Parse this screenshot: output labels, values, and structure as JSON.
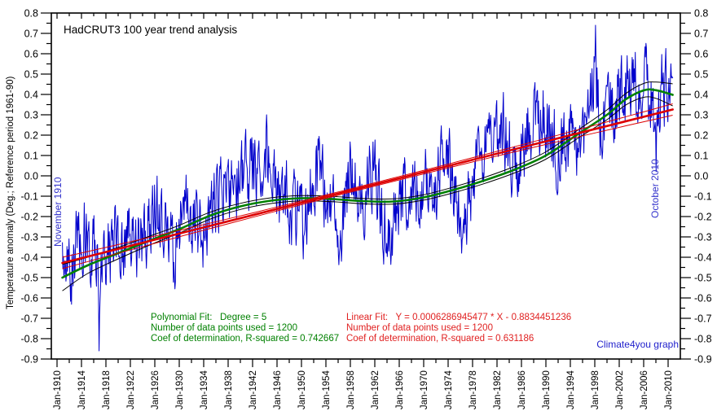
{
  "annotations": {
    "series_start": "November 1910",
    "series_end": "October 2010",
    "credit": "Climate4you graph"
  },
  "stats": {
    "poly": {
      "line1": "Polynomial Fit:   Degree = 5",
      "line2": "Number of data points used = 1200",
      "line3": "Coef of determination, R-squared = 0.742667"
    },
    "linear": {
      "line1": "Linear Fit:   Y = 0.0006286945477 * X - 0.8834451236",
      "line2": "Number of data points used = 1200",
      "line3": "Coef of determination, R-squared = 0.631186"
    }
  },
  "colors": {
    "monthly_data": "#0000CC",
    "polynomial_fit": "#008000",
    "linear_fit": "#DD0000",
    "confidence_band": "#000000",
    "annotation_text": "#3333CC",
    "credit_text": "#2222CC"
  },
  "chart_data": {
    "type": "line",
    "title": "HadCRUT3 100 year trend analysis",
    "ylabel": "Temperature anomaly (Deg.; Reference period 1961-90)",
    "ylim": [
      -0.9,
      0.8
    ],
    "y_major_step": 0.1,
    "y_minor_step": 0.05,
    "x_domain_years": [
      1909,
      2012
    ],
    "x_major_step_years": 4,
    "x_minor_step_years": 2,
    "grid": false,
    "legend": "none",
    "x_tick_labels": [
      "Jan-1910",
      "Jan-1914",
      "Jan-1918",
      "Jan-1922",
      "Jan-1926",
      "Jan-1930",
      "Jan-1934",
      "Jan-1938",
      "Jan-1942",
      "Jan-1946",
      "Jan-1950",
      "Jan-1954",
      "Jan-1958",
      "Jan-1962",
      "Jan-1966",
      "Jan-1970",
      "Jan-1974",
      "Jan-1978",
      "Jan-1982",
      "Jan-1986",
      "Jan-1990",
      "Jan-1994",
      "Jan-1998",
      "Jan-2002",
      "Jan-2006",
      "Jan-2010"
    ],
    "series": [
      {
        "name": "HadCRUT3 monthly temperature anomaly",
        "kind": "monthly_noisy",
        "color": "#0000CC",
        "start": "November 1910",
        "end": "October 2010",
        "n_points": 1200,
        "annual_means": [
          [
            1910.9,
            -0.46
          ],
          [
            1912,
            -0.48
          ],
          [
            1914,
            -0.28
          ],
          [
            1915,
            -0.22
          ],
          [
            1917,
            -0.52
          ],
          [
            1918,
            -0.42
          ],
          [
            1920,
            -0.3
          ],
          [
            1922,
            -0.34
          ],
          [
            1924,
            -0.33
          ],
          [
            1926,
            -0.18
          ],
          [
            1928,
            -0.24
          ],
          [
            1929,
            -0.38
          ],
          [
            1931,
            -0.16
          ],
          [
            1933,
            -0.3
          ],
          [
            1935,
            -0.22
          ],
          [
            1937,
            -0.08
          ],
          [
            1939,
            -0.04
          ],
          [
            1941,
            0.02
          ],
          [
            1943,
            -0.02
          ],
          [
            1944,
            0.12
          ],
          [
            1946,
            -0.08
          ],
          [
            1948,
            -0.12
          ],
          [
            1950,
            -0.24
          ],
          [
            1952,
            -0.02
          ],
          [
            1953,
            0.06
          ],
          [
            1955,
            -0.2
          ],
          [
            1956,
            -0.28
          ],
          [
            1958,
            0.02
          ],
          [
            1960,
            -0.06
          ],
          [
            1962,
            0.0
          ],
          [
            1964,
            -0.3
          ],
          [
            1966,
            -0.12
          ],
          [
            1968,
            -0.1
          ],
          [
            1970,
            0.0
          ],
          [
            1972,
            -0.02
          ],
          [
            1973,
            0.12
          ],
          [
            1975,
            -0.06
          ],
          [
            1976,
            -0.22
          ],
          [
            1978,
            -0.02
          ],
          [
            1980,
            0.12
          ],
          [
            1981,
            0.2
          ],
          [
            1983,
            0.22
          ],
          [
            1985,
            0.02
          ],
          [
            1987,
            0.24
          ],
          [
            1988,
            0.26
          ],
          [
            1990,
            0.3
          ],
          [
            1992,
            0.12
          ],
          [
            1994,
            0.2
          ],
          [
            1996,
            0.2
          ],
          [
            1997,
            0.36
          ],
          [
            1998,
            0.52
          ],
          [
            1999,
            0.26
          ],
          [
            2001,
            0.36
          ],
          [
            2002,
            0.44
          ],
          [
            2004,
            0.42
          ],
          [
            2005,
            0.46
          ],
          [
            2007,
            0.42
          ],
          [
            2008,
            0.26
          ],
          [
            2009,
            0.42
          ],
          [
            2010.8,
            0.5
          ]
        ],
        "noise": {
          "seed": 19102010,
          "phi": 0.45,
          "amp": 0.16
        },
        "forced_points": [
          [
            1916.9,
            -0.86
          ],
          [
            1944.3,
            0.3
          ],
          [
            1956.5,
            -0.42
          ],
          [
            1963.9,
            -0.38
          ],
          [
            1976.2,
            -0.38
          ],
          [
            1998.12,
            0.74
          ],
          [
            2008.04,
            0.02
          ],
          [
            2010.75,
            0.48
          ]
        ]
      },
      {
        "name": "Polynomial fit (degree 5) with confidence band",
        "kind": "smooth_with_band",
        "color": "#008000",
        "band_color": "#000000",
        "degree": 5,
        "r_squared": 0.742667,
        "samples": [
          [
            1910.875,
            -0.5,
            0.065
          ],
          [
            1915,
            -0.44,
            0.04
          ],
          [
            1920,
            -0.38,
            0.028
          ],
          [
            1925,
            -0.32,
            0.022
          ],
          [
            1930,
            -0.262,
            0.019
          ],
          [
            1935,
            -0.196,
            0.017
          ],
          [
            1940,
            -0.15,
            0.015
          ],
          [
            1945,
            -0.122,
            0.014
          ],
          [
            1950,
            -0.11,
            0.013
          ],
          [
            1955,
            -0.114,
            0.013
          ],
          [
            1960,
            -0.124,
            0.013
          ],
          [
            1965,
            -0.126,
            0.013
          ],
          [
            1970,
            -0.106,
            0.013
          ],
          [
            1975,
            -0.068,
            0.014
          ],
          [
            1980,
            -0.022,
            0.015
          ],
          [
            1985,
            0.032,
            0.016
          ],
          [
            1990,
            0.1,
            0.018
          ],
          [
            1995,
            0.2,
            0.02
          ],
          [
            2000,
            0.3,
            0.024
          ],
          [
            2003,
            0.375,
            0.028
          ],
          [
            2006,
            0.42,
            0.034
          ],
          [
            2008,
            0.421,
            0.04
          ],
          [
            2010.75,
            0.398,
            0.054
          ]
        ]
      },
      {
        "name": "Linear fit with confidence band",
        "kind": "linear_with_band",
        "color": "#DD0000",
        "band_color": "#DD0000",
        "equation": "Y = 0.0006286945477 * X - 0.8834451236",
        "r_squared": 0.631186,
        "x0": 1910.875,
        "y0": -0.428,
        "x1": 2010.75,
        "y1": 0.326,
        "band": {
          "mid_year": 1960.8,
          "mid_halfwidth": 0.008,
          "end_halfwidth": 0.028
        }
      }
    ]
  }
}
